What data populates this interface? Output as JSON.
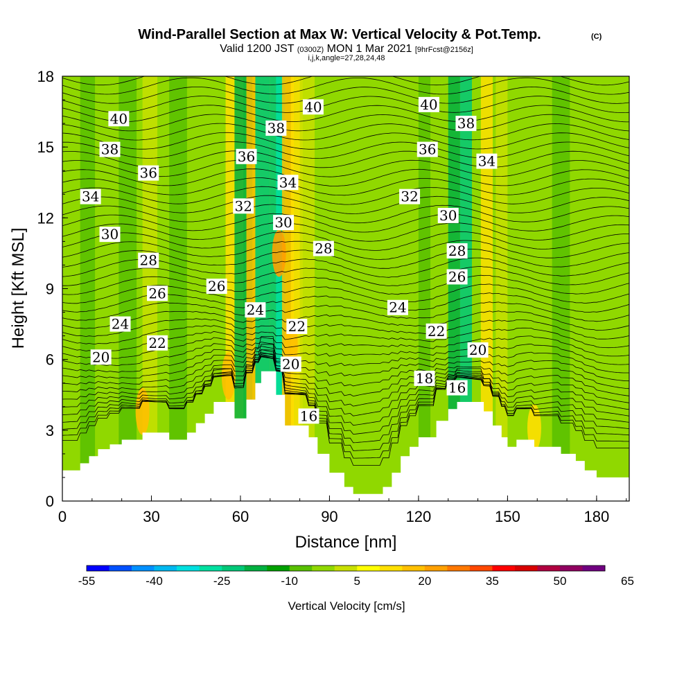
{
  "title_main": "Wind-Parallel Section at Max W: Vertical Velocity & Pot.Temp.",
  "title_copyright": "(C)",
  "subtitle_parts": [
    "Valid 1200 JST",
    "(0300Z)",
    "MON 1 Mar 2021",
    "[9hrFcst@2156z]"
  ],
  "indices_line": "i,j,k,angle=27,28,24,48",
  "chart_data": {
    "type": "heatmap",
    "title": "Wind-Parallel Section at Max W: Vertical Velocity & Pot.Temp.",
    "xlabel": "Distance [nm]",
    "ylabel": "Height [Kft MSL]",
    "xlim": [
      0,
      191
    ],
    "ylim": [
      0,
      18
    ],
    "x_ticks": [
      0,
      30,
      60,
      90,
      120,
      150,
      180
    ],
    "y_ticks": [
      0,
      3,
      6,
      9,
      12,
      15,
      18
    ],
    "colorbar": {
      "label": "Vertical Velocity [cm/s]",
      "tick_labels": [
        "-55",
        "-40",
        "-25",
        "-10",
        "5",
        "20",
        "35",
        "50",
        "65"
      ],
      "colors": [
        "#0000ff",
        "#0050ff",
        "#0090ff",
        "#00b8f0",
        "#00e0e0",
        "#00e0a0",
        "#00c878",
        "#00b040",
        "#00a000",
        "#58c000",
        "#90d800",
        "#c8e000",
        "#ffff00",
        "#ffe000",
        "#ffc000",
        "#ffa000",
        "#ff7800",
        "#ff4800",
        "#ff0000",
        "#d80000",
        "#b00040",
        "#900060",
        "#700080"
      ]
    },
    "contour_field": "Potential Temperature",
    "contour_labels": [
      {
        "text": "40",
        "x": 19,
        "y": 16.2
      },
      {
        "text": "38",
        "x": 16,
        "y": 14.9
      },
      {
        "text": "36",
        "x": 29,
        "y": 13.9
      },
      {
        "text": "34",
        "x": 9.5,
        "y": 12.9
      },
      {
        "text": "30",
        "x": 16,
        "y": 11.3
      },
      {
        "text": "28",
        "x": 29,
        "y": 10.2
      },
      {
        "text": "26",
        "x": 32,
        "y": 8.8
      },
      {
        "text": "24",
        "x": 19.5,
        "y": 7.5
      },
      {
        "text": "22",
        "x": 32,
        "y": 6.7
      },
      {
        "text": "20",
        "x": 13,
        "y": 6.1
      },
      {
        "text": "26",
        "x": 52,
        "y": 9.1
      },
      {
        "text": "36",
        "x": 62,
        "y": 14.6
      },
      {
        "text": "32",
        "x": 61,
        "y": 12.5
      },
      {
        "text": "24",
        "x": 65,
        "y": 8.1
      },
      {
        "text": "38",
        "x": 72,
        "y": 15.8
      },
      {
        "text": "34",
        "x": 76,
        "y": 13.5
      },
      {
        "text": "30",
        "x": 74.5,
        "y": 11.8
      },
      {
        "text": "22",
        "x": 79,
        "y": 7.4
      },
      {
        "text": "20",
        "x": 77,
        "y": 5.8
      },
      {
        "text": "16",
        "x": 83,
        "y": 3.6
      },
      {
        "text": "40",
        "x": 84.5,
        "y": 16.7
      },
      {
        "text": "28",
        "x": 88,
        "y": 10.7
      },
      {
        "text": "24",
        "x": 113,
        "y": 8.2
      },
      {
        "text": "32",
        "x": 117,
        "y": 12.9
      },
      {
        "text": "36",
        "x": 123,
        "y": 14.9
      },
      {
        "text": "40",
        "x": 123.5,
        "y": 16.8
      },
      {
        "text": "38",
        "x": 136,
        "y": 16.0
      },
      {
        "text": "34",
        "x": 143,
        "y": 14.4
      },
      {
        "text": "30",
        "x": 130,
        "y": 12.1
      },
      {
        "text": "28",
        "x": 133,
        "y": 10.6
      },
      {
        "text": "26",
        "x": 133,
        "y": 9.5
      },
      {
        "text": "22",
        "x": 126,
        "y": 7.2
      },
      {
        "text": "20",
        "x": 140,
        "y": 6.4
      },
      {
        "text": "18",
        "x": 122,
        "y": 5.2
      },
      {
        "text": "16",
        "x": 133,
        "y": 4.8
      }
    ],
    "terrain_profile": [
      [
        0,
        1.3
      ],
      [
        6,
        1.3
      ],
      [
        6,
        1.6
      ],
      [
        9,
        1.6
      ],
      [
        9,
        1.9
      ],
      [
        12,
        1.9
      ],
      [
        12,
        2.2
      ],
      [
        16,
        2.2
      ],
      [
        16,
        2.4
      ],
      [
        20,
        2.4
      ],
      [
        20,
        2.6
      ],
      [
        27,
        2.6
      ],
      [
        27,
        2.9
      ],
      [
        36,
        2.9
      ],
      [
        36,
        2.6
      ],
      [
        42,
        2.6
      ],
      [
        42,
        2.9
      ],
      [
        45,
        2.9
      ],
      [
        45,
        3.3
      ],
      [
        48,
        3.3
      ],
      [
        48,
        3.7
      ],
      [
        51,
        3.7
      ],
      [
        51,
        4.2
      ],
      [
        58,
        4.2
      ],
      [
        58,
        3.5
      ],
      [
        62,
        3.5
      ],
      [
        62,
        4.3
      ],
      [
        65,
        4.3
      ],
      [
        65,
        5.0
      ],
      [
        67,
        5.0
      ],
      [
        67,
        5.5
      ],
      [
        72,
        5.5
      ],
      [
        72,
        4.5
      ],
      [
        75,
        4.5
      ],
      [
        75,
        3.2
      ],
      [
        83,
        3.2
      ],
      [
        83,
        2.7
      ],
      [
        86,
        2.7
      ],
      [
        86,
        2.0
      ],
      [
        90,
        2.0
      ],
      [
        90,
        1.2
      ],
      [
        95,
        1.2
      ],
      [
        95,
        0.6
      ],
      [
        98,
        0.6
      ],
      [
        98,
        0.3
      ],
      [
        108,
        0.3
      ],
      [
        108,
        0.6
      ],
      [
        111,
        0.6
      ],
      [
        111,
        1.2
      ],
      [
        114,
        1.2
      ],
      [
        114,
        1.9
      ],
      [
        117,
        1.9
      ],
      [
        117,
        2.3
      ],
      [
        120,
        2.3
      ],
      [
        120,
        2.7
      ],
      [
        126,
        2.7
      ],
      [
        126,
        3.4
      ],
      [
        130,
        3.4
      ],
      [
        130,
        3.9
      ],
      [
        133,
        3.9
      ],
      [
        133,
        4.2
      ],
      [
        142,
        4.2
      ],
      [
        142,
        3.8
      ],
      [
        145,
        3.8
      ],
      [
        145,
        3.2
      ],
      [
        148,
        3.2
      ],
      [
        148,
        2.7
      ],
      [
        150,
        2.7
      ],
      [
        150,
        2.3
      ],
      [
        153,
        2.3
      ],
      [
        153,
        2.6
      ],
      [
        159,
        2.6
      ],
      [
        159,
        2.3
      ],
      [
        168,
        2.3
      ],
      [
        168,
        2.0
      ],
      [
        173,
        2.0
      ],
      [
        173,
        1.7
      ],
      [
        176,
        1.7
      ],
      [
        176,
        1.3
      ],
      [
        180,
        1.3
      ],
      [
        180,
        1.0
      ],
      [
        191,
        1.0
      ]
    ],
    "velocity_bands": [
      {
        "x": 6,
        "width": 5,
        "color": "#58c000"
      },
      {
        "x": 19,
        "width": 6,
        "color": "#58c000"
      },
      {
        "x": 27,
        "width": 5,
        "color": "#c8e000"
      },
      {
        "x": 36,
        "width": 6,
        "color": "#58c000"
      },
      {
        "x": 55,
        "width": 6,
        "color": "#ffe000"
      },
      {
        "x": 58,
        "width": 6,
        "color": "#00b040"
      },
      {
        "x": 65,
        "width": 5,
        "color": "#00c878"
      },
      {
        "x": 62,
        "width": 3,
        "color": "#ffc000"
      },
      {
        "x": 70,
        "width": 4,
        "color": "#00c878"
      },
      {
        "x": 72,
        "width": 3,
        "color": "#00e0a0"
      },
      {
        "x": 74,
        "width": 4,
        "color": "#ffc000"
      },
      {
        "x": 77,
        "width": 4,
        "color": "#ffe000"
      },
      {
        "x": 80,
        "width": 5,
        "color": "#c8e000"
      },
      {
        "x": 120,
        "width": 4,
        "color": "#58c000"
      },
      {
        "x": 130,
        "width": 4,
        "color": "#00b040"
      },
      {
        "x": 134,
        "width": 4,
        "color": "#00c878"
      },
      {
        "x": 141,
        "width": 4,
        "color": "#ffe000"
      },
      {
        "x": 146,
        "width": 4,
        "color": "#c8e000"
      },
      {
        "x": 165,
        "width": 6,
        "color": "#58c000"
      }
    ],
    "warm_spots": [
      {
        "x": 27,
        "y": 3.8,
        "color": "#ffc000"
      },
      {
        "x": 56,
        "y": 5.3,
        "color": "#ffc000"
      },
      {
        "x": 73,
        "y": 10.5,
        "color": "#ffa000"
      },
      {
        "x": 77,
        "y": 6.6,
        "color": "#ffc000"
      },
      {
        "x": 159,
        "y": 3.1,
        "color": "#ffe000"
      }
    ]
  }
}
